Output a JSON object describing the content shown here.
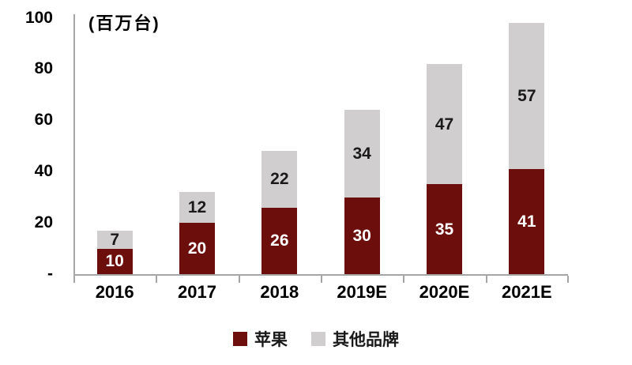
{
  "chart_data": {
    "type": "bar",
    "stacked": true,
    "title": "",
    "unit_label": "(百万台)",
    "categories": [
      "2016",
      "2017",
      "2018",
      "2019E",
      "2020E",
      "2021E"
    ],
    "series": [
      {
        "name": "苹果",
        "color": "#6b0e0c",
        "label_color": "#ffffff",
        "values": [
          10,
          20,
          26,
          30,
          35,
          41
        ]
      },
      {
        "name": "其他品牌",
        "color": "#d0cece",
        "label_color": "#1a1a1a",
        "values": [
          7,
          12,
          22,
          34,
          47,
          57
        ]
      }
    ],
    "totals": [
      17,
      32,
      48,
      64,
      82,
      98
    ],
    "y_axis": {
      "max": 100,
      "min": 0,
      "ticks": [
        {
          "label": "100",
          "value": 100
        },
        {
          "label": "80",
          "value": 80
        },
        {
          "label": "60",
          "value": 60
        },
        {
          "label": "40",
          "value": 40
        },
        {
          "label": "20",
          "value": 20
        },
        {
          "label": "-",
          "value": 0
        }
      ]
    },
    "grid": false,
    "legend_position": "bottom",
    "legend": [
      "苹果",
      "其他品牌"
    ]
  },
  "colors": {
    "axis": "#a6a6a6",
    "apple": "#6b0e0c",
    "other_brands": "#d0cece",
    "text": "#000000"
  }
}
